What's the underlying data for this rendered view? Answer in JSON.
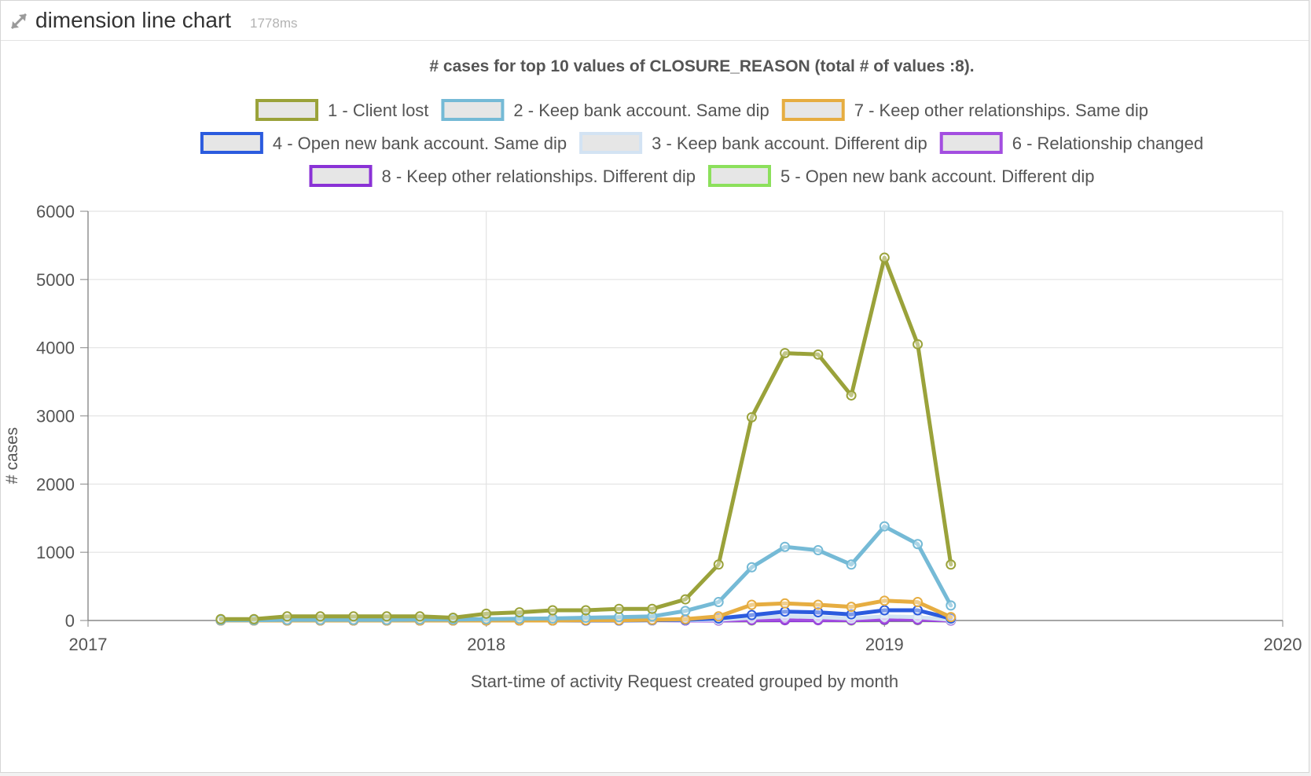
{
  "panel": {
    "title": "dimension line chart",
    "timing": "1778ms",
    "expand_icon": "expand-arrows-icon"
  },
  "chart_data": {
    "type": "line",
    "title": "# cases for top 10 values of CLOSURE_REASON (total # of values :8).",
    "xlabel": "Start-time of activity Request created grouped by month",
    "ylabel": "# cases",
    "xlim": [
      "2017-01",
      "2020-01"
    ],
    "ylim": [
      0,
      6000
    ],
    "x_ticks": [
      "2017",
      "2018",
      "2019",
      "2020"
    ],
    "y_ticks": [
      0,
      1000,
      2000,
      3000,
      4000,
      5000,
      6000
    ],
    "grid": true,
    "legend_position": "top",
    "x": [
      "2017-05",
      "2017-06",
      "2017-07",
      "2017-08",
      "2017-09",
      "2017-10",
      "2017-11",
      "2017-12",
      "2018-01",
      "2018-02",
      "2018-03",
      "2018-04",
      "2018-05",
      "2018-06",
      "2018-07",
      "2018-08",
      "2018-09",
      "2018-10",
      "2018-11",
      "2018-12",
      "2019-01",
      "2019-02",
      "2019-03"
    ],
    "series": [
      {
        "name": "1 - Client lost",
        "color": "#9aa23a",
        "values": [
          20,
          20,
          60,
          60,
          60,
          60,
          60,
          40,
          100,
          120,
          150,
          150,
          170,
          170,
          310,
          820,
          2980,
          3920,
          3900,
          3300,
          5320,
          4050,
          820
        ]
      },
      {
        "name": "2 - Keep bank account. Same dip",
        "color": "#75bad6",
        "values": [
          5,
          5,
          10,
          10,
          10,
          10,
          15,
          15,
          20,
          25,
          30,
          40,
          50,
          60,
          140,
          270,
          780,
          1080,
          1030,
          820,
          1380,
          1120,
          220
        ]
      },
      {
        "name": "7 - Keep other relationships. Same dip",
        "color": "#e6ad41",
        "values": [
          0,
          0,
          0,
          0,
          0,
          0,
          0,
          0,
          0,
          0,
          0,
          5,
          5,
          10,
          20,
          60,
          230,
          250,
          230,
          200,
          290,
          270,
          50
        ]
      },
      {
        "name": "4 - Open new bank account. Same dip",
        "color": "#2b5bde",
        "values": [
          0,
          0,
          0,
          0,
          0,
          0,
          0,
          0,
          0,
          0,
          0,
          0,
          0,
          5,
          10,
          30,
          80,
          130,
          120,
          90,
          150,
          150,
          30
        ]
      },
      {
        "name": "3 - Keep bank account. Different dip",
        "color": "#d3e3f3",
        "values": [
          0,
          0,
          0,
          0,
          0,
          0,
          0,
          0,
          0,
          0,
          0,
          0,
          0,
          0,
          5,
          10,
          40,
          60,
          50,
          30,
          60,
          50,
          10
        ]
      },
      {
        "name": "6 - Relationship changed",
        "color": "#a34ee0",
        "values": [
          0,
          0,
          0,
          0,
          0,
          0,
          0,
          0,
          0,
          0,
          0,
          0,
          0,
          0,
          0,
          5,
          10,
          20,
          15,
          10,
          25,
          20,
          5
        ]
      },
      {
        "name": "8 - Keep other relationships. Different dip",
        "color": "#8a32d6",
        "values": [
          0,
          0,
          0,
          0,
          0,
          0,
          0,
          0,
          0,
          0,
          0,
          0,
          0,
          0,
          0,
          0,
          5,
          5,
          5,
          5,
          10,
          10,
          0
        ]
      },
      {
        "name": "5 - Open new bank account. Different dip",
        "color": "#8ce05c",
        "values": [
          0,
          0,
          0,
          0,
          0,
          0,
          0,
          0,
          0,
          0,
          0,
          0,
          0,
          0,
          0,
          0,
          0,
          5,
          5,
          0,
          5,
          5,
          0
        ]
      }
    ]
  }
}
